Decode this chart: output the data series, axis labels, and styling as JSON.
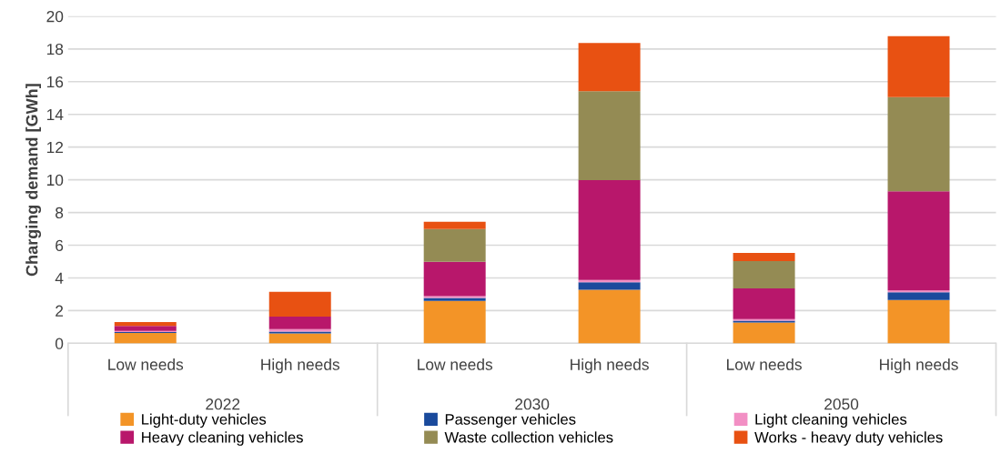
{
  "chart_data": {
    "type": "bar",
    "stacked": true,
    "ylabel": "Charging demand [GWh]",
    "categories": [
      "Low needs",
      "High needs",
      "Low needs",
      "High needs",
      "Low needs",
      "High needs"
    ],
    "annotations": [
      "2022",
      "2030",
      "2050"
    ],
    "series": [
      {
        "name": "Light-duty vehicles",
        "color": "#f39427",
        "values": [
          0.63,
          0.61,
          2.6,
          3.28,
          1.28,
          2.65
        ]
      },
      {
        "name": "Passenger vehicles",
        "color": "#1a4a9c",
        "values": [
          0.06,
          0.11,
          0.18,
          0.45,
          0.11,
          0.47
        ]
      },
      {
        "name": "Light cleaning vehicles",
        "color": "#f28fc4",
        "values": [
          0.07,
          0.15,
          0.1,
          0.15,
          0.09,
          0.11
        ]
      },
      {
        "name": "Heavy cleaning vehicles",
        "color": "#b8176b",
        "values": [
          0.3,
          0.76,
          2.11,
          6.1,
          1.88,
          6.07
        ]
      },
      {
        "name": "Waste collection vehicles",
        "color": "#948b54",
        "values": [
          0,
          0,
          2.0,
          5.43,
          1.67,
          5.76
        ]
      },
      {
        "name": "Works - heavy duty vehicles",
        "color": "#e85112",
        "values": [
          0.24,
          1.52,
          0.45,
          2.96,
          0.5,
          3.72
        ]
      }
    ],
    "ylim": [
      0,
      20
    ],
    "yticks": [
      0,
      2,
      4,
      6,
      8,
      10,
      12,
      14,
      16,
      18,
      20
    ],
    "grid": "y",
    "legend": "bottom"
  }
}
